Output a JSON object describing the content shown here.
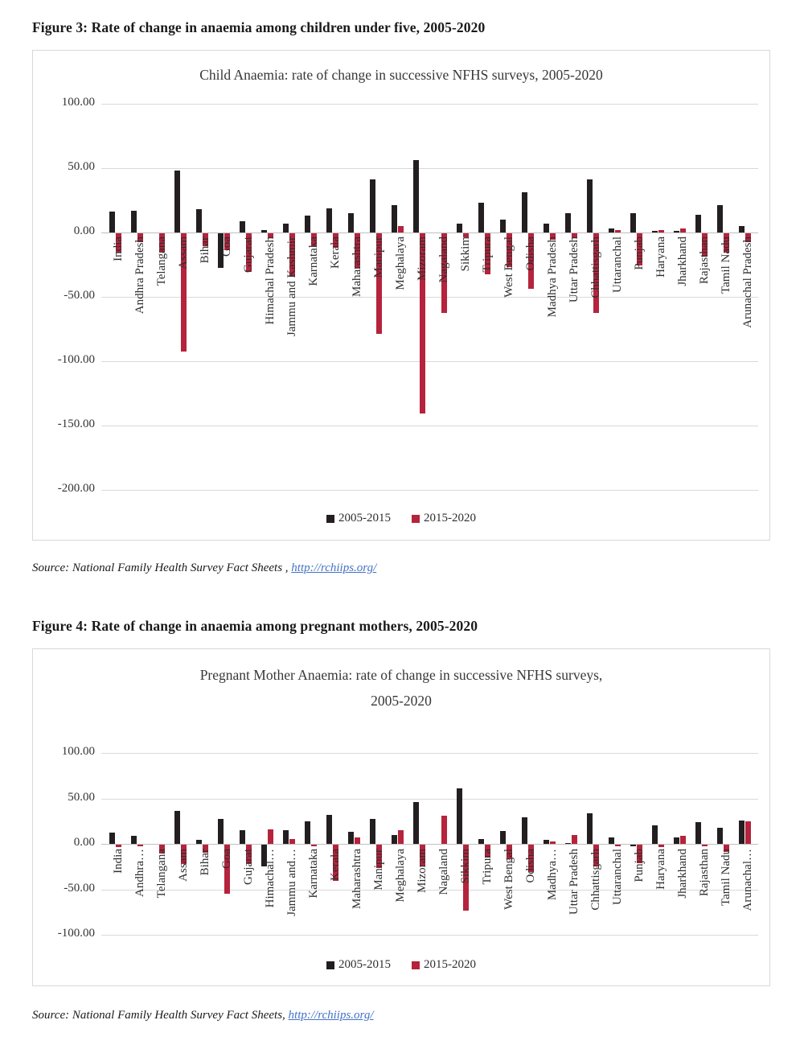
{
  "page": {
    "figure3_heading": "Figure 3: Rate of change in anaemia among children under five, 2005-2020",
    "figure4_heading": "Figure 4: Rate of change in anaemia among pregnant mothers, 2005-2020",
    "source1_text": "Source: National Family Health Survey Fact Sheets ,",
    "source1_link": "http://rchiips.org/",
    "source2_text": "Source: National Family Health Survey Fact Sheets,",
    "source2_link": "http://rchiips.org/"
  },
  "colors": {
    "bar_black": "#231f20",
    "bar_red": "#b5233c",
    "gridline": "#d9d9d9",
    "link_blue": "#4472c4"
  },
  "chart_data": [
    {
      "type": "bar",
      "title": "Child Anaemia: rate of change in successive NFHS surveys, 2005-2020",
      "ylim": [
        -200,
        100
      ],
      "grid": true,
      "legend_position": "bottom",
      "yticks": [
        {
          "v": 100,
          "label": "100.00"
        },
        {
          "v": 50,
          "label": "50.00"
        },
        {
          "v": 0,
          "label": "0.00"
        },
        {
          "v": -50,
          "label": "-50.00"
        },
        {
          "v": -100,
          "label": "-100.00"
        },
        {
          "v": -150,
          "label": "-150.00"
        },
        {
          "v": -200,
          "label": "-200.00"
        }
      ],
      "categories": [
        "India",
        "Andhra Pradesh",
        "Telangana",
        "Assam",
        "Bihar",
        "Goa",
        "Gujarat",
        "Himachal Pradesh",
        "Jammu and Kashmir",
        "Karnataka",
        "Kerala",
        "Maharashtra",
        "Manipur",
        "Meghalaya",
        "Mizoram",
        "Nagaland",
        "Sikkim",
        "Tripura",
        "West Bengal",
        "Odisha",
        "Madhya Pradesh",
        "Uttar Pradesh",
        "Chhattisgarh",
        "Uttaranchal",
        "Punjab",
        "Haryana",
        "Jharkhand",
        "Rajasthan",
        "Tamil Nadu",
        "Arunachal Pradesh"
      ],
      "series": [
        {
          "name": "2005-2015",
          "color": "#231f20",
          "values": [
            16,
            17,
            0,
            48,
            18,
            -27,
            9,
            2,
            7,
            13,
            19,
            15,
            41,
            21,
            56,
            0,
            7,
            23,
            10,
            31,
            7,
            15,
            41,
            3,
            15,
            1,
            1,
            14,
            21,
            5
          ]
        },
        {
          "name": "2015-2020",
          "color": "#b5233c",
          "values": [
            -15,
            -7,
            -15,
            -92,
            -10,
            -13,
            -30,
            -4,
            -34,
            -10,
            -11,
            -27,
            -78,
            5,
            -140,
            -62,
            -3,
            -32,
            -26,
            -43,
            -5,
            -4,
            -62,
            2,
            -25,
            2,
            3,
            -18,
            -15,
            -7
          ]
        }
      ]
    },
    {
      "type": "bar",
      "title": "Pregnant Mother Anaemia: rate of change in successive NFHS surveys, 2005-2020",
      "title_lines": [
        "Pregnant Mother Anaemia: rate of change in successive NFHS surveys,",
        "2005-2020"
      ],
      "ylim": [
        -100,
        100
      ],
      "grid": true,
      "legend_position": "bottom",
      "yticks": [
        {
          "v": 100,
          "label": "100.00"
        },
        {
          "v": 50,
          "label": "50.00"
        },
        {
          "v": 0,
          "label": "0.00"
        },
        {
          "v": -50,
          "label": "-50.00"
        },
        {
          "v": -100,
          "label": "-100.00"
        }
      ],
      "categories": [
        "India",
        "Andhra…",
        "Telangana",
        "Assam",
        "Bihar",
        "Goa",
        "Gujarat",
        "Himachal…",
        "Jammu and…",
        "Karnataka",
        "Kerala",
        "Maharashtra",
        "Manipur",
        "Meghalaya",
        "Mizoram",
        "Nagaland",
        "Sikkim",
        "Tripura",
        "West Bengal",
        "Odisha",
        "Madhya…",
        "Uttar Pradesh",
        "Chhattisgarh",
        "Uttaranchal",
        "Punjab",
        "Haryana",
        "Jharkhand",
        "Rajasthan",
        "Tamil Nadu",
        "Arunachal…"
      ],
      "series": [
        {
          "name": "2005-2015",
          "color": "#231f20",
          "values": [
            12,
            9,
            0,
            36,
            4,
            27,
            15,
            -24,
            15,
            25,
            32,
            13,
            27,
            10,
            46,
            0,
            61,
            5,
            14,
            29,
            4,
            1,
            34,
            7,
            -2,
            20,
            7,
            24,
            18,
            26
          ]
        },
        {
          "name": "2015-2020",
          "color": "#b5233c",
          "values": [
            -3,
            -1,
            -10,
            -21,
            -9,
            -54,
            -21,
            16,
            5,
            -2,
            -40,
            7,
            -26,
            15,
            -24,
            31,
            -73,
            -14,
            -16,
            -30,
            3,
            10,
            -24,
            -1,
            -20,
            -3,
            9,
            -1,
            -8,
            25
          ]
        }
      ]
    }
  ]
}
